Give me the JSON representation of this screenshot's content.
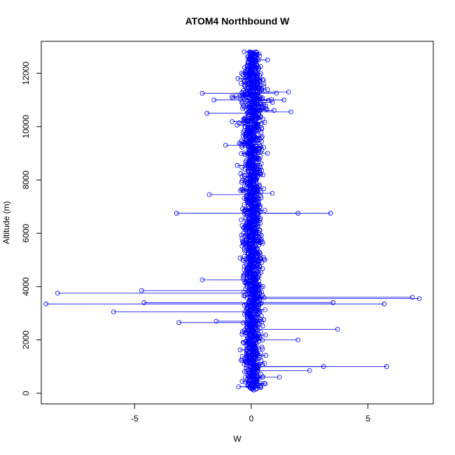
{
  "chart_data": {
    "type": "scatter",
    "title": "ATOM4 Northbound W",
    "xlabel": "W",
    "ylabel": "Altitude (m)",
    "xlim": [
      -9.0,
      7.8
    ],
    "ylim": [
      -400,
      13200
    ],
    "x_ticks": [
      -5,
      0,
      5
    ],
    "x_tick_labels": [
      "-5",
      "0",
      "5"
    ],
    "y_ticks": [
      0,
      2000,
      4000,
      6000,
      8000,
      10000,
      12000
    ],
    "y_tick_labels": [
      "0",
      "2000",
      "4000",
      "6000",
      "8000",
      "10000",
      "12000"
    ],
    "series": [
      {
        "marker": "open-circle",
        "connected": true,
        "color": "#0000ff",
        "points_sample": [
          [
            0.1,
            120
          ],
          [
            0.6,
            350
          ],
          [
            1.2,
            600
          ],
          [
            2.5,
            850
          ],
          [
            3.1,
            1000
          ],
          [
            5.8,
            1000
          ],
          [
            0.4,
            1500
          ],
          [
            2.0,
            2000
          ],
          [
            3.7,
            2400
          ],
          [
            -1.5,
            2700
          ],
          [
            -3.1,
            2650
          ],
          [
            -5.9,
            3050
          ],
          [
            -8.8,
            3350
          ],
          [
            -4.6,
            3400
          ],
          [
            7.2,
            3550
          ],
          [
            6.9,
            3600
          ],
          [
            5.7,
            3350
          ],
          [
            3.5,
            3400
          ],
          [
            -8.3,
            3750
          ],
          [
            -4.7,
            3850
          ],
          [
            0.5,
            4000
          ],
          [
            -2.1,
            4250
          ],
          [
            0.3,
            5000
          ],
          [
            -3.2,
            6750
          ],
          [
            3.4,
            6750
          ],
          [
            2.0,
            6750
          ],
          [
            -1.8,
            7450
          ],
          [
            0.9,
            7500
          ],
          [
            -0.2,
            8000
          ],
          [
            0.7,
            9000
          ],
          [
            -1.1,
            9300
          ],
          [
            -1.9,
            10500
          ],
          [
            1.7,
            10550
          ],
          [
            0.2,
            10300
          ],
          [
            -1.6,
            11000
          ],
          [
            1.4,
            11000
          ],
          [
            -2.1,
            11250
          ],
          [
            1.6,
            11300
          ],
          [
            -0.3,
            11700
          ],
          [
            0.0,
            12000
          ],
          [
            0.3,
            12500
          ],
          [
            0.7,
            12500
          ],
          [
            0.2,
            12800
          ],
          [
            -0.3,
            12800
          ]
        ]
      }
    ],
    "grid": false,
    "legend": "none"
  }
}
